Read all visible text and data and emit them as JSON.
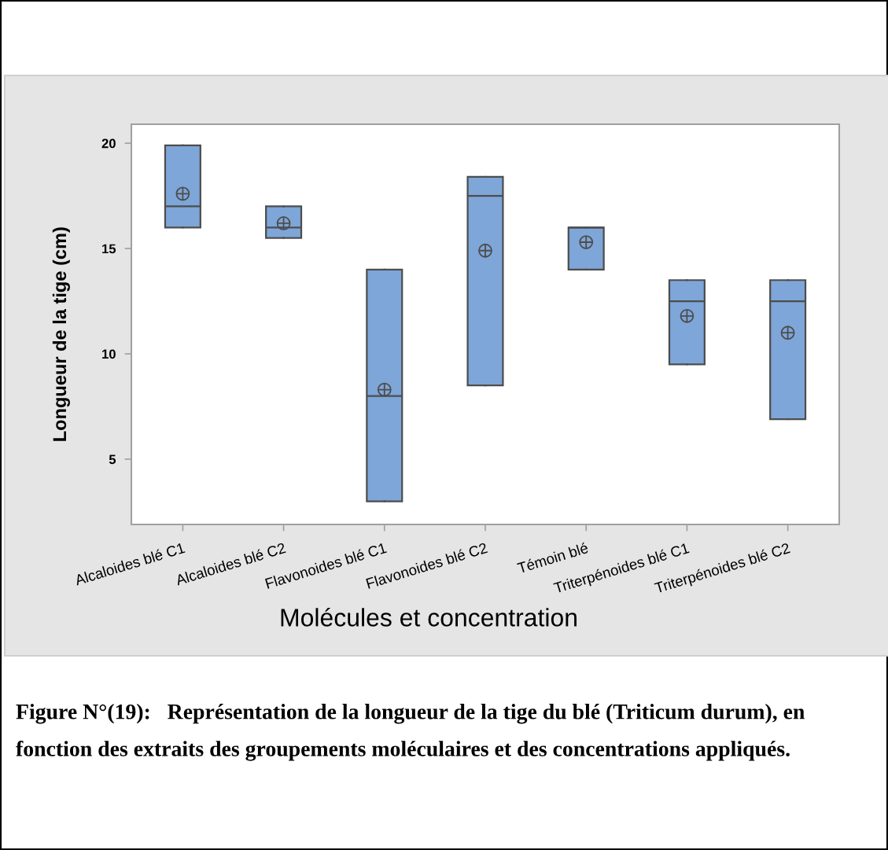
{
  "chart_data": {
    "type": "box",
    "xlabel": "Molécules et concentration",
    "ylabel": "Longueur de la tige (cm)",
    "categories": [
      "Alcaloides blé C1",
      "Alcaloides blé C2",
      "Flavonoides blé C1",
      "Flavonoides blé C2",
      "Témoin blé",
      "Triterpénoides blé C1",
      "Triterpénoides blé C2"
    ],
    "series": [
      {
        "color": "#7ea6d8",
        "boxes": [
          {
            "low": 16.0,
            "q1": 16.0,
            "median": 17.0,
            "q3": 19.9,
            "high": 19.9,
            "mean": 17.6
          },
          {
            "low": 15.5,
            "q1": 15.5,
            "median": 16.0,
            "q3": 17.0,
            "high": 17.0,
            "mean": 16.2
          },
          {
            "low": 3.0,
            "q1": 3.0,
            "median": 8.0,
            "q3": 14.0,
            "high": 14.0,
            "mean": 8.3
          },
          {
            "low": 8.5,
            "q1": 8.5,
            "median": 17.5,
            "q3": 18.4,
            "high": 18.4,
            "mean": 14.9
          },
          {
            "low": 14.0,
            "q1": 14.0,
            "median": 16.0,
            "q3": 16.0,
            "high": 16.0,
            "mean": 15.3
          },
          {
            "low": 9.5,
            "q1": 9.5,
            "median": 12.5,
            "q3": 13.5,
            "high": 13.5,
            "mean": 11.8
          },
          {
            "low": 6.9,
            "q1": 6.9,
            "median": 12.5,
            "q3": 13.5,
            "high": 13.5,
            "mean": 11.0
          }
        ]
      }
    ],
    "ylim": [
      1.9,
      20.9
    ],
    "yticks": [
      5,
      10,
      15,
      20
    ],
    "grid": false,
    "legend": false,
    "annotations": [
      "Figure N°(19):   Représentation de la longueur de la tige du blé (Triticum durum), en\nfonction des extraits des groupements moléculaires et des concentrations appliqués."
    ]
  }
}
